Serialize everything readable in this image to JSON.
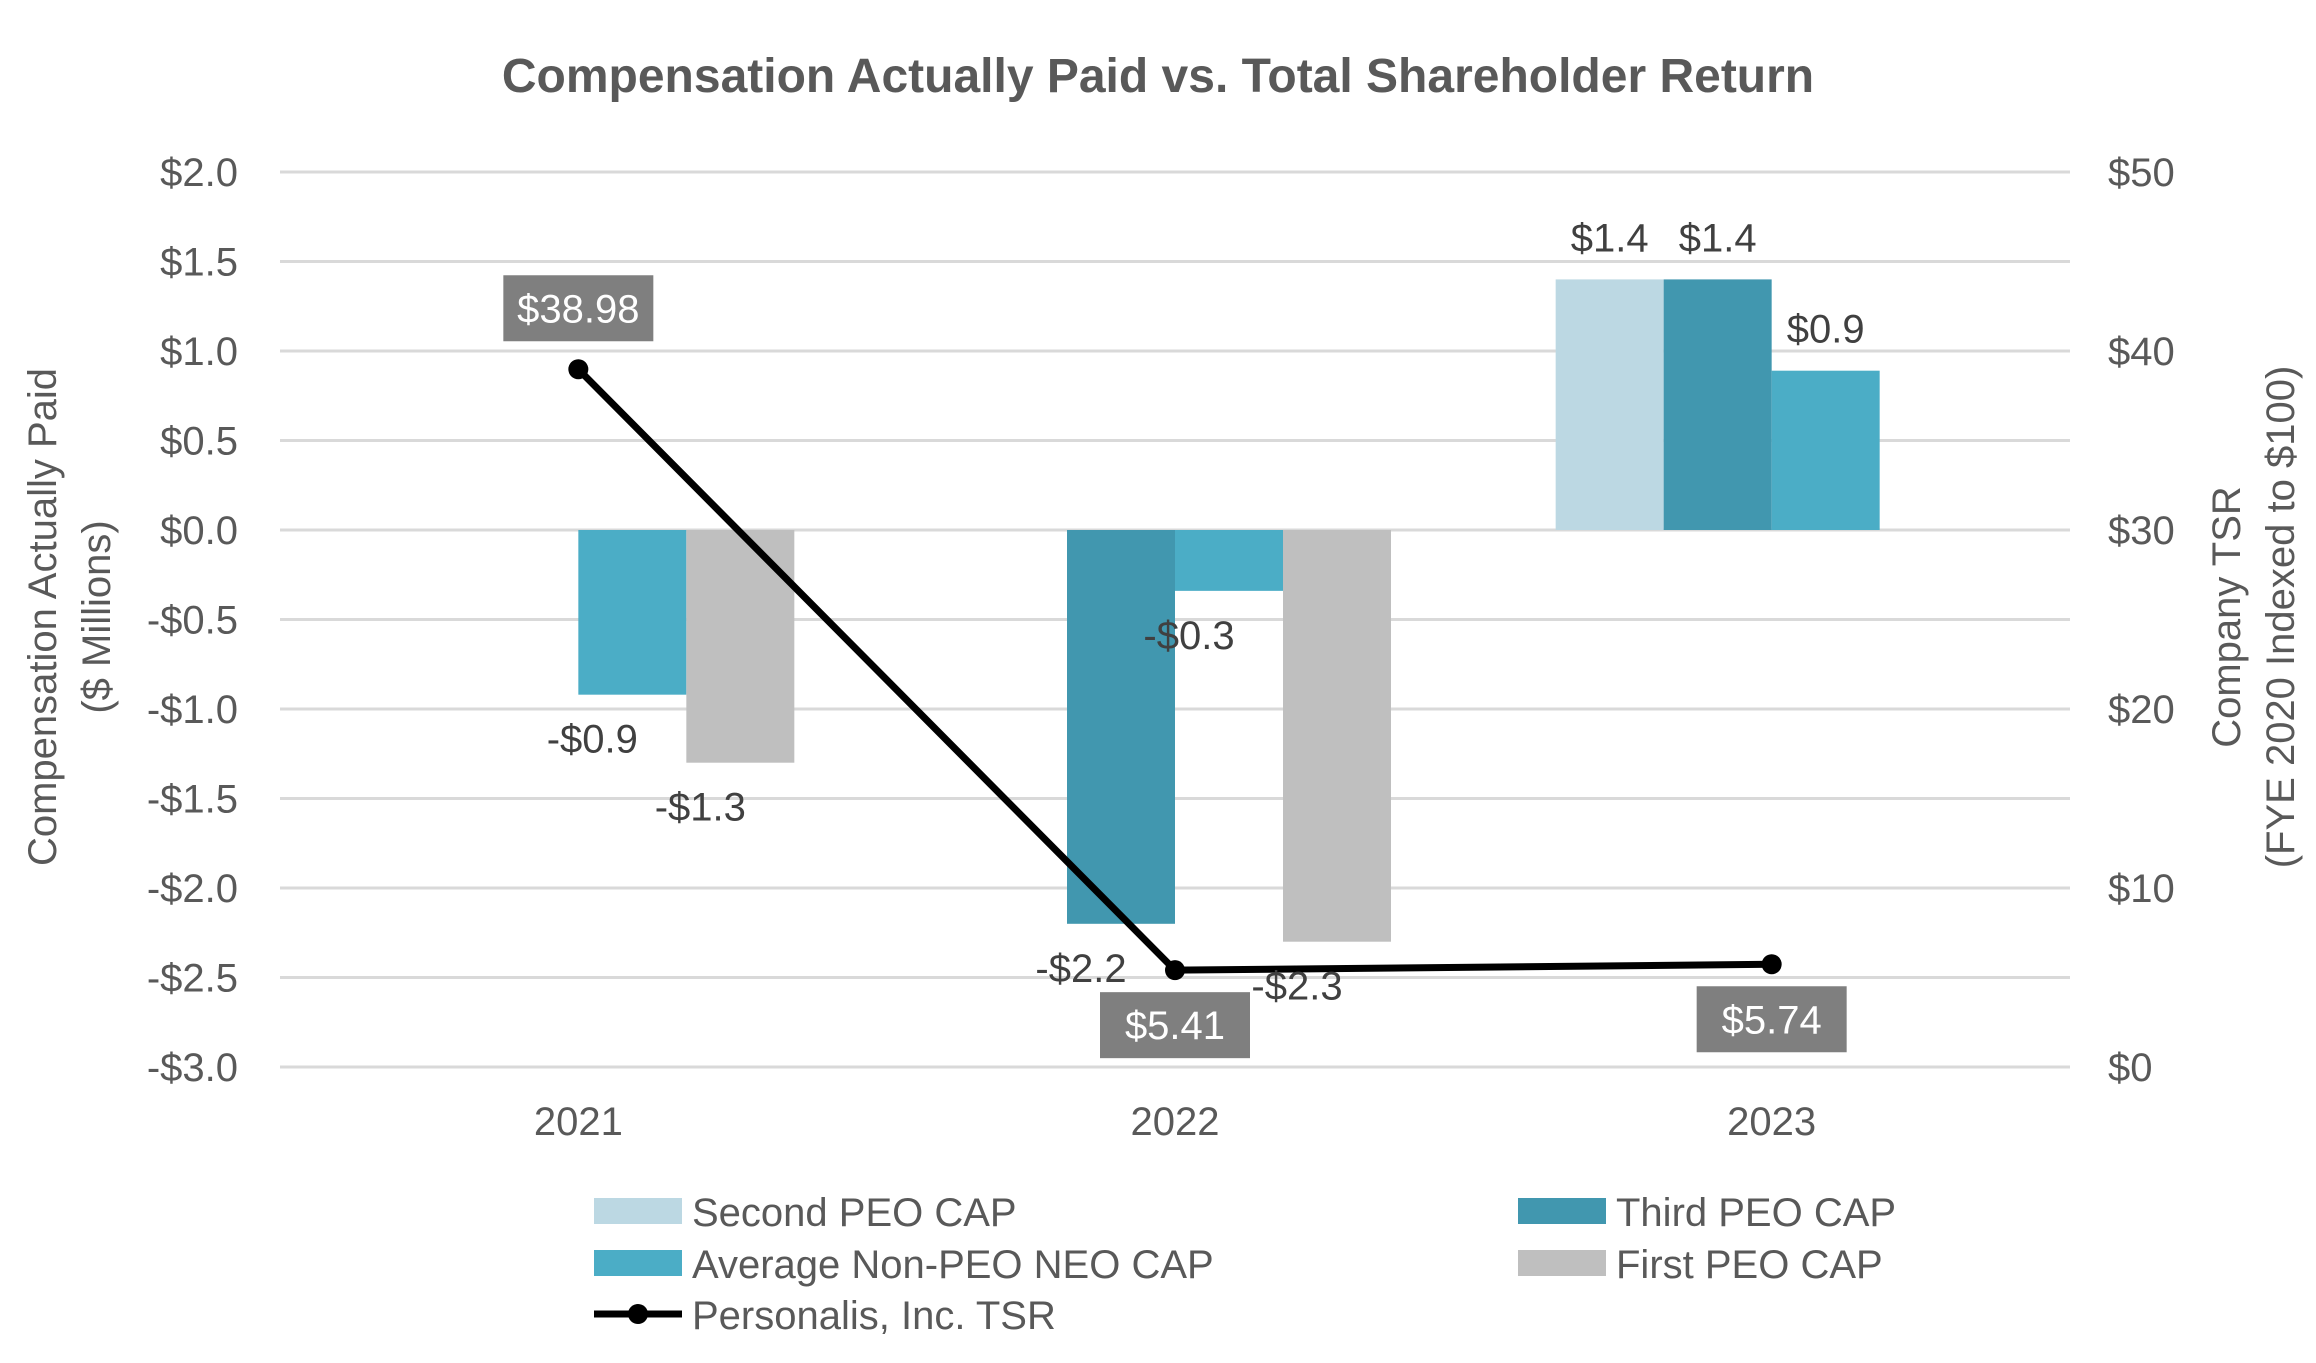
{
  "chart_data": {
    "type": "bar",
    "title": "Compensation Actually Paid vs. Total Shareholder Return",
    "categories": [
      "2021",
      "2022",
      "2023"
    ],
    "ylabel_left": [
      "Compensation Actually Paid",
      "($ Millions)"
    ],
    "ylabel_right": [
      "Company TSR",
      "(FYE 2020 Indexed to $100)"
    ],
    "ylim_left": [
      -3.0,
      2.0
    ],
    "ylim_right": [
      0,
      50
    ],
    "left_ticks": [
      {
        "value": 2.0,
        "label": "$2.0"
      },
      {
        "value": 1.5,
        "label": "$1.5"
      },
      {
        "value": 1.0,
        "label": "$1.0"
      },
      {
        "value": 0.5,
        "label": "$0.5"
      },
      {
        "value": 0.0,
        "label": "$0.0"
      },
      {
        "value": -0.5,
        "label": "-$0.5"
      },
      {
        "value": -1.0,
        "label": "-$1.0"
      },
      {
        "value": -1.5,
        "label": "-$1.5"
      },
      {
        "value": -2.0,
        "label": "-$2.0"
      },
      {
        "value": -2.5,
        "label": "-$2.5"
      },
      {
        "value": -3.0,
        "label": "-$3.0"
      }
    ],
    "right_ticks": [
      {
        "value": 50,
        "label": "$50"
      },
      {
        "value": 40,
        "label": "$40"
      },
      {
        "value": 30,
        "label": "$30"
      },
      {
        "value": 20,
        "label": "$20"
      },
      {
        "value": 10,
        "label": "$10"
      },
      {
        "value": 0,
        "label": "$0"
      }
    ],
    "grid": true,
    "legend_position": "bottom",
    "series": [
      {
        "name": "Second PEO CAP",
        "color": "#bcd8e3",
        "values": [
          null,
          null,
          1.4
        ],
        "labels": [
          null,
          null,
          "$1.4"
        ]
      },
      {
        "name": "Third PEO CAP",
        "color": "#4197af",
        "values": [
          null,
          -2.2,
          1.4
        ],
        "labels": [
          null,
          "-$2.2",
          "$1.4"
        ]
      },
      {
        "name": "Average Non-PEO NEO CAP",
        "color": "#4badc6",
        "values": [
          -0.92,
          -0.34,
          0.89
        ],
        "labels": [
          "-$0.9",
          "-$0.3",
          "$0.9"
        ]
      },
      {
        "name": "First PEO CAP",
        "color": "#bfbfbf",
        "values": [
          -1.3,
          -2.3,
          null
        ],
        "labels": [
          "-$1.3",
          "-$2.3",
          null
        ]
      }
    ],
    "line_series": {
      "name": "Personalis, Inc. TSR",
      "color": "#000000",
      "axis": "right",
      "values": [
        38.98,
        5.41,
        5.74
      ],
      "labels": [
        "$38.98",
        "$5.41",
        "$5.74"
      ]
    }
  }
}
